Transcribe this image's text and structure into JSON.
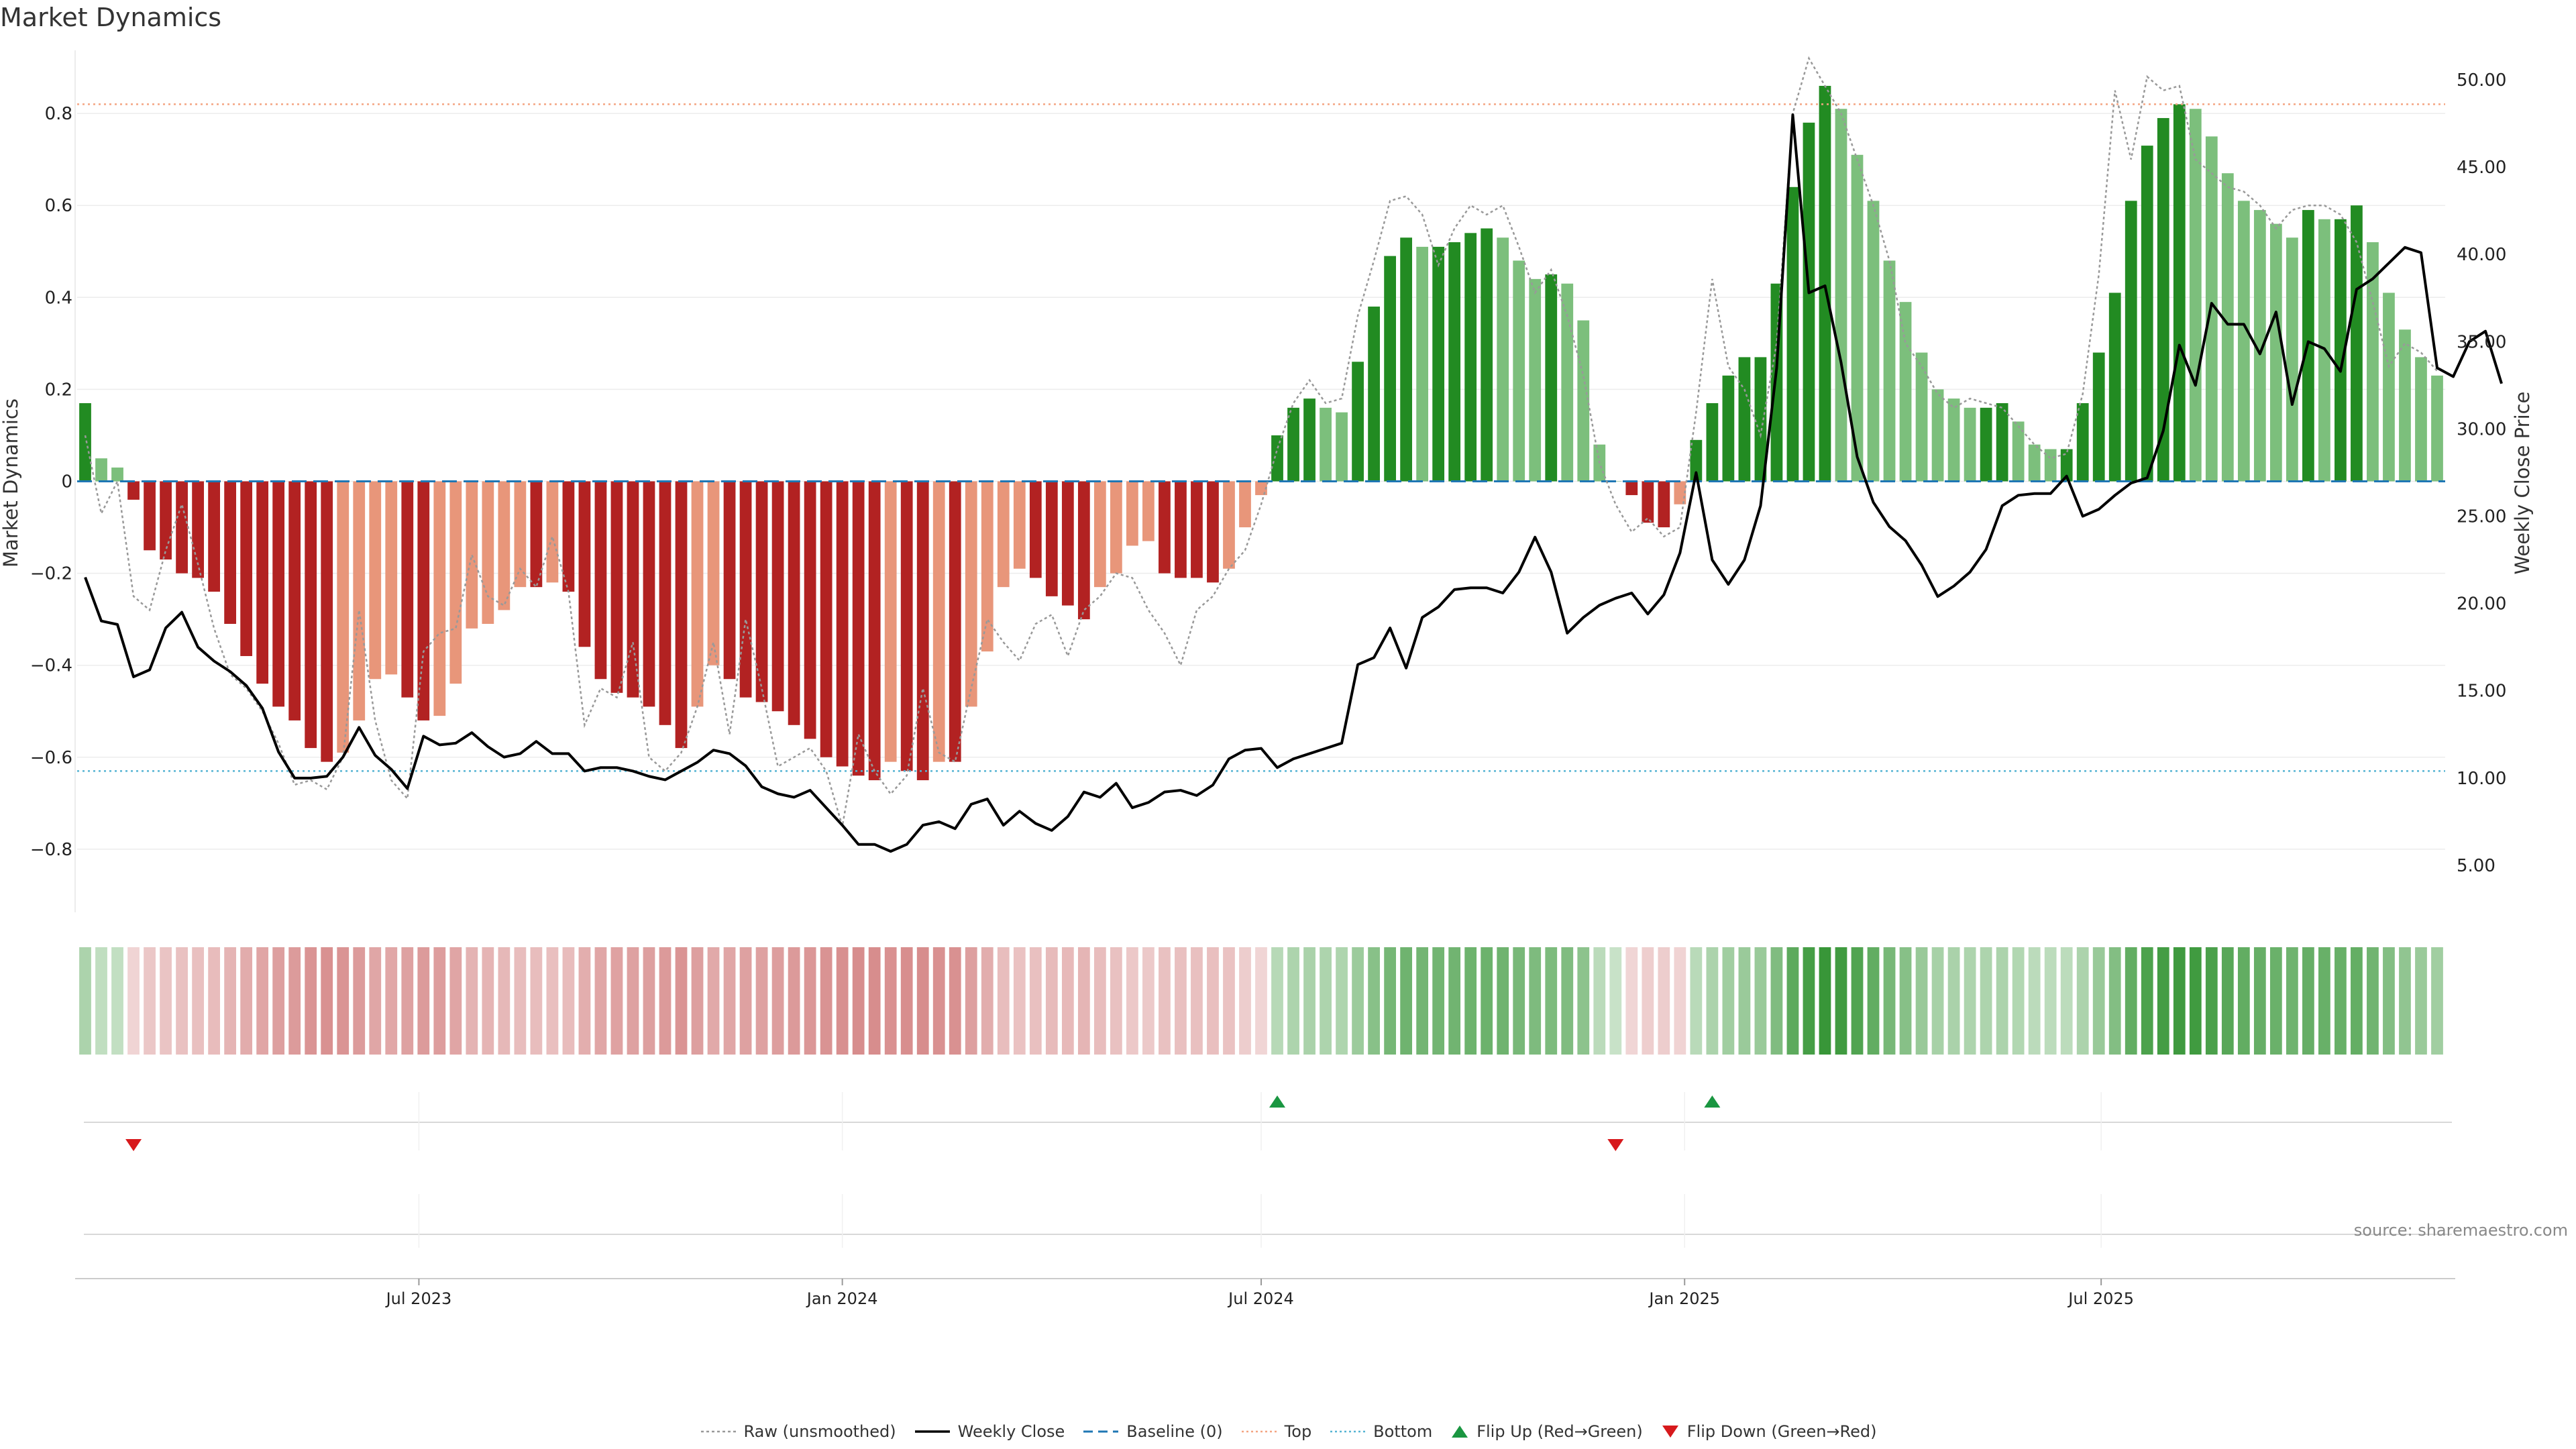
{
  "title": "Market Dynamics",
  "source": "source: sharemaestro.com",
  "axes": {
    "left_label": "Market Dynamics",
    "right_label": "Weekly Close Price",
    "left_ticks": [
      "0.8",
      "0.6",
      "0.4",
      "0.2",
      "0",
      "−0.2",
      "−0.4",
      "−0.6",
      "−0.8"
    ],
    "right_ticks": [
      "50.00",
      "45.00",
      "40.00",
      "35.00",
      "30.00",
      "25.00",
      "20.00",
      "15.00",
      "10.00",
      "5.00"
    ],
    "x_ticks": [
      "Jul 2023",
      "Jan 2024",
      "Jul 2024",
      "Jan 2025",
      "Jul 2025"
    ]
  },
  "legend": {
    "raw": "Raw (unsmoothed)",
    "close": "Weekly Close",
    "baseline": "Baseline (0)",
    "top": "Top",
    "bottom": "Bottom",
    "flip_up": "Flip Up (Red→Green)",
    "flip_down": "Flip Down (Green→Red)"
  },
  "colors": {
    "strong_green": "#228b22",
    "light_green": "#7cbf7c",
    "strong_red": "#b22222",
    "light_red": "#e8967a",
    "close_line": "#000000",
    "raw_line": "#999999",
    "baseline": "#1f77b4",
    "top_line": "#f4a582",
    "bottom_line": "#56b4d3",
    "flip_up": "#1a9641",
    "flip_down": "#d7191c"
  },
  "chart_data": {
    "type": "bar",
    "x_start": "2023-02-06",
    "x_step_days": 7,
    "ylim_left": [
      -0.93,
      0.93
    ],
    "ylim_right": [
      2.5,
      51.5
    ],
    "top_level": 0.82,
    "bottom_level": -0.63,
    "series": [
      {
        "name": "Market Dynamics",
        "kind": "bar",
        "values": [
          0.17,
          0.05,
          0.03,
          -0.04,
          -0.15,
          -0.17,
          -0.2,
          -0.21,
          -0.24,
          -0.31,
          -0.38,
          -0.44,
          -0.49,
          -0.52,
          -0.58,
          -0.61,
          -0.59,
          -0.52,
          -0.43,
          -0.42,
          -0.47,
          -0.52,
          -0.51,
          -0.44,
          -0.32,
          -0.31,
          -0.28,
          -0.23,
          -0.23,
          -0.22,
          -0.24,
          -0.36,
          -0.43,
          -0.46,
          -0.47,
          -0.49,
          -0.53,
          -0.58,
          -0.49,
          -0.4,
          -0.43,
          -0.47,
          -0.48,
          -0.5,
          -0.53,
          -0.56,
          -0.6,
          -0.62,
          -0.64,
          -0.65,
          -0.61,
          -0.63,
          -0.65,
          -0.61,
          -0.61,
          -0.49,
          -0.37,
          -0.23,
          -0.19,
          -0.21,
          -0.25,
          -0.27,
          -0.3,
          -0.23,
          -0.2,
          -0.14,
          -0.13,
          -0.2,
          -0.21,
          -0.21,
          -0.22,
          -0.19,
          -0.1,
          -0.03,
          0.1,
          0.16,
          0.18,
          0.16,
          0.15,
          0.26,
          0.38,
          0.49,
          0.53,
          0.51,
          0.51,
          0.52,
          0.54,
          0.55,
          0.53,
          0.48,
          0.44,
          0.45,
          0.43,
          0.35,
          0.08,
          0.0,
          -0.03,
          -0.09,
          -0.1,
          -0.05,
          0.09,
          0.17,
          0.23,
          0.27,
          0.27,
          0.43,
          0.64,
          0.78,
          0.86,
          0.81,
          0.71,
          0.61,
          0.48,
          0.39,
          0.28,
          0.2,
          0.18,
          0.16,
          0.16,
          0.17,
          0.13,
          0.08,
          0.07,
          0.07,
          0.17,
          0.28,
          0.41,
          0.61,
          0.73,
          0.79,
          0.82,
          0.81,
          0.75,
          0.67,
          0.61,
          0.59,
          0.56,
          0.53,
          0.59,
          0.57,
          0.57,
          0.6,
          0.52,
          0.41,
          0.33,
          0.27,
          0.23
        ]
      },
      {
        "name": "Raw (unsmoothed)",
        "kind": "dotted_line",
        "values": [
          0.1,
          -0.07,
          0.0,
          -0.25,
          -0.28,
          -0.15,
          -0.05,
          -0.18,
          -0.32,
          -0.42,
          -0.45,
          -0.5,
          -0.57,
          -0.66,
          -0.65,
          -0.67,
          -0.6,
          -0.28,
          -0.52,
          -0.65,
          -0.69,
          -0.37,
          -0.33,
          -0.32,
          -0.16,
          -0.25,
          -0.27,
          -0.19,
          -0.23,
          -0.12,
          -0.24,
          -0.53,
          -0.45,
          -0.47,
          -0.35,
          -0.6,
          -0.63,
          -0.59,
          -0.49,
          -0.35,
          -0.55,
          -0.3,
          -0.45,
          -0.62,
          -0.6,
          -0.58,
          -0.63,
          -0.75,
          -0.55,
          -0.63,
          -0.68,
          -0.64,
          -0.45,
          -0.59,
          -0.61,
          -0.45,
          -0.3,
          -0.35,
          -0.39,
          -0.31,
          -0.29,
          -0.38,
          -0.28,
          -0.25,
          -0.2,
          -0.21,
          -0.28,
          -0.33,
          -0.4,
          -0.28,
          -0.25,
          -0.19,
          -0.15,
          -0.05,
          0.07,
          0.17,
          0.22,
          0.17,
          0.18,
          0.36,
          0.48,
          0.61,
          0.62,
          0.58,
          0.47,
          0.55,
          0.6,
          0.58,
          0.6,
          0.51,
          0.41,
          0.46,
          0.36,
          0.23,
          0.04,
          -0.05,
          -0.11,
          -0.08,
          -0.12,
          -0.1,
          0.15,
          0.44,
          0.25,
          0.2,
          0.1,
          0.3,
          0.8,
          0.92,
          0.86,
          0.8,
          0.7,
          0.6,
          0.48,
          0.3,
          0.25,
          0.19,
          0.16,
          0.18,
          0.17,
          0.16,
          0.12,
          0.08,
          0.05,
          0.06,
          0.19,
          0.45,
          0.85,
          0.7,
          0.88,
          0.85,
          0.86,
          0.7,
          0.67,
          0.64,
          0.63,
          0.6,
          0.55,
          0.59,
          0.6,
          0.6,
          0.58,
          0.52,
          0.39,
          0.25,
          0.3,
          0.28,
          0.24
        ]
      },
      {
        "name": "Weekly Close",
        "kind": "line",
        "values": [
          21.5,
          19.0,
          18.8,
          15.8,
          16.2,
          18.6,
          19.5,
          17.5,
          16.7,
          16.1,
          15.3,
          14.0,
          11.5,
          10.0,
          10.0,
          10.1,
          11.2,
          12.9,
          11.3,
          10.5,
          9.4,
          12.4,
          11.9,
          12.0,
          12.6,
          11.8,
          11.2,
          11.4,
          12.1,
          11.4,
          11.4,
          10.4,
          10.6,
          10.6,
          10.4,
          10.1,
          9.9,
          10.4,
          10.9,
          11.6,
          11.4,
          10.7,
          9.5,
          9.1,
          8.9,
          9.3,
          8.3,
          7.3,
          6.2,
          6.2,
          5.8,
          6.2,
          7.3,
          7.5,
          7.1,
          8.5,
          8.8,
          7.3,
          8.1,
          7.4,
          7.0,
          7.8,
          9.2,
          8.9,
          9.7,
          8.3,
          8.6,
          9.2,
          9.3,
          9.0,
          9.6,
          11.1,
          11.6,
          11.7,
          10.6,
          11.1,
          11.4,
          11.7,
          12.0,
          16.5,
          16.9,
          18.6,
          16.3,
          19.2,
          19.8,
          20.8,
          20.9,
          20.9,
          20.6,
          21.8,
          23.8,
          21.8,
          18.3,
          19.2,
          19.9,
          20.3,
          20.6,
          19.4,
          20.5,
          22.9,
          27.5,
          22.5,
          21.1,
          22.5,
          25.6,
          33.5,
          48.0,
          37.8,
          38.2,
          33.8,
          28.4,
          25.8,
          24.4,
          23.6,
          22.2,
          20.4,
          21.0,
          21.8,
          23.1,
          25.6,
          26.2,
          26.3,
          26.3,
          27.3,
          25.0,
          25.4,
          26.2,
          26.9,
          27.2,
          29.9,
          34.8,
          32.5,
          37.2,
          36.0,
          36.0,
          34.3,
          36.7,
          31.4,
          35.0,
          34.6,
          33.3,
          38.0,
          38.6,
          39.5,
          40.4,
          40.1,
          33.5,
          33.0,
          35.0,
          35.6,
          32.6
        ]
      }
    ],
    "flips": {
      "up_at_index": [
        74,
        101
      ],
      "down_at_index": [
        3,
        95
      ]
    }
  }
}
